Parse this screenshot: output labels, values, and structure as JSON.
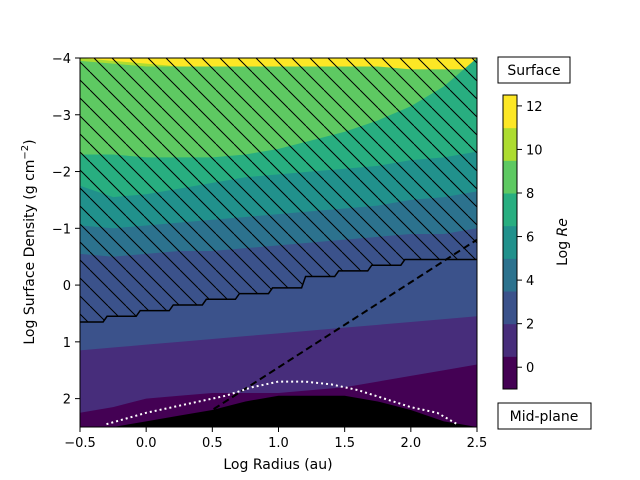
{
  "chart_data": {
    "type": "heatmap",
    "xlabel": "Log Radius (au)",
    "ylabel": "Log Surface Density (g cm$^{-2}$)",
    "ylabel_main": "Log Surface Density (g cm",
    "ylabel_sup": "−2",
    "ylabel_close": ")",
    "xlim": [
      -0.5,
      2.5
    ],
    "ylim": [
      2.5,
      -4
    ],
    "y_inverted": true,
    "x_ticks": [
      -0.5,
      0.0,
      0.5,
      1.0,
      1.5,
      2.0,
      2.5
    ],
    "x_tick_labels": [
      "−0.5",
      "0.0",
      "0.5",
      "1.0",
      "1.5",
      "2.0",
      "2.5"
    ],
    "y_ticks": [
      -4,
      -3,
      -2,
      -1,
      0,
      1,
      2
    ],
    "y_tick_labels": [
      "−4",
      "−3",
      "−2",
      "−1",
      "0",
      "1",
      "2"
    ],
    "colorbar": {
      "label": "Log Re",
      "label_main": "Log ",
      "label_italic": "Re",
      "range": [
        -1,
        12.5
      ],
      "ticks": [
        0,
        2,
        4,
        6,
        8,
        10,
        12
      ],
      "tick_labels": [
        "0",
        "2",
        "4",
        "6",
        "8",
        "10",
        "12"
      ],
      "levels": [
        -1,
        0.5,
        2,
        3.5,
        5,
        6.5,
        8,
        9.5,
        11,
        12.5
      ],
      "colors": [
        "#440154",
        "#472d7b",
        "#3b528b",
        "#2c728e",
        "#21918c",
        "#28ae80",
        "#5ec962",
        "#addc30",
        "#fde725"
      ]
    },
    "annotations": {
      "top_box": "Surface",
      "bottom_box": "Mid-plane"
    },
    "contour_level_boundaries": [
      {
        "level": 12.5,
        "y": [
          -4.0,
          -3.95,
          -3.9,
          -3.85,
          -3.8,
          -3.8,
          -3.8,
          -3.8,
          -3.8,
          -3.8,
          -3.8,
          -3.8,
          -3.8
        ]
      },
      {
        "level": 11.0,
        "y": [
          -3.95,
          -3.9,
          -3.85,
          -3.85,
          -3.85,
          -3.85,
          -3.85,
          -3.85,
          -3.85,
          -3.85,
          -3.8,
          -3.8,
          -3.8
        ]
      },
      {
        "level": 9.5,
        "y": [
          -2.3,
          -2.3,
          -2.25,
          -2.25,
          -2.25,
          -2.3,
          -2.4,
          -2.55,
          -2.7,
          -2.9,
          -3.15,
          -3.5,
          -4.0
        ]
      },
      {
        "level": 8.0,
        "y": [
          -1.75,
          -1.55,
          -1.6,
          -1.7,
          -1.8,
          -1.9,
          -1.95,
          -2.0,
          -2.05,
          -2.1,
          -2.2,
          -2.25,
          -2.35
        ]
      },
      {
        "level": 6.5,
        "y": [
          -1.05,
          -1.0,
          -1.05,
          -1.1,
          -1.15,
          -1.2,
          -1.25,
          -1.3,
          -1.35,
          -1.4,
          -1.5,
          -1.55,
          -1.65
        ]
      },
      {
        "level": 5.0,
        "y": [
          -0.55,
          -0.5,
          -0.55,
          -0.6,
          -0.6,
          -0.65,
          -0.7,
          -0.75,
          -0.8,
          -0.85,
          -0.9,
          -0.9,
          -1.0
        ]
      },
      {
        "level": 3.5,
        "y": [
          1.15,
          1.1,
          1.05,
          1.0,
          0.95,
          0.9,
          0.85,
          0.8,
          0.75,
          0.7,
          0.65,
          0.6,
          0.55
        ]
      },
      {
        "level": 2.0,
        "y": [
          2.25,
          2.15,
          2.0,
          1.95,
          1.9,
          1.9,
          1.9,
          1.85,
          1.8,
          1.7,
          1.6,
          1.5,
          1.4
        ]
      },
      {
        "level": 0.5,
        "y": [
          2.5,
          2.5,
          2.4,
          2.3,
          2.2,
          2.05,
          1.95,
          1.95,
          1.95,
          2.05,
          2.2,
          2.4,
          2.5
        ]
      }
    ],
    "hatched_region_lower_boundary": {
      "x": [
        -0.5,
        -0.25,
        0.0,
        0.25,
        0.5,
        0.75,
        1.0,
        1.25,
        1.5,
        1.75,
        2.0,
        2.25,
        2.5
      ],
      "y": [
        0.65,
        0.55,
        0.45,
        0.35,
        0.25,
        0.15,
        0.05,
        -0.15,
        -0.25,
        -0.35,
        -0.45,
        -0.45,
        -0.45
      ]
    },
    "dashed_line": {
      "x": [
        0.3,
        2.5
      ],
      "y": [
        2.5,
        -0.8
      ]
    },
    "dotted_line": {
      "x": [
        -0.3,
        -0.15,
        0.0,
        0.2,
        0.4,
        0.6,
        0.8,
        1.0,
        1.2,
        1.4,
        1.6,
        1.8,
        2.0,
        2.2,
        2.35
      ],
      "y": [
        2.45,
        2.35,
        2.25,
        2.15,
        2.05,
        1.95,
        1.8,
        1.7,
        1.7,
        1.75,
        1.85,
        2.0,
        2.15,
        2.25,
        2.45
      ]
    }
  }
}
